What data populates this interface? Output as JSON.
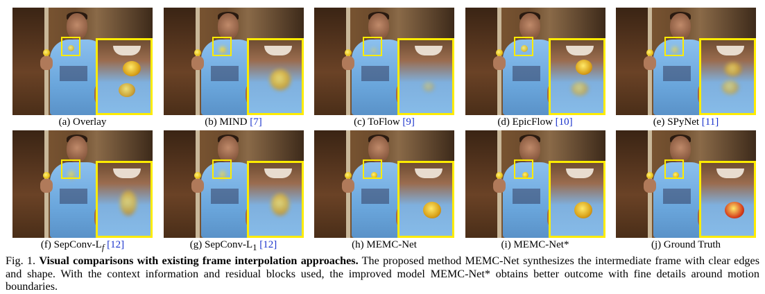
{
  "figure": {
    "rows": [
      [
        {
          "letter": "(a)",
          "label": "Overlay",
          "ref": ""
        },
        {
          "letter": "(b)",
          "label": "MIND",
          "ref": "[7]"
        },
        {
          "letter": "(c)",
          "label": "ToFlow",
          "ref": "[9]"
        },
        {
          "letter": "(d)",
          "label": "EpicFlow",
          "ref": "[10]"
        },
        {
          "letter": "(e)",
          "label": "SPyNet",
          "ref": "[11]"
        }
      ],
      [
        {
          "letter": "(f)",
          "label": "SepConv-L",
          "sub": "f",
          "ref": "[12]"
        },
        {
          "letter": "(g)",
          "label": "SepConv-L",
          "sub": "1",
          "ref": "[12]"
        },
        {
          "letter": "(h)",
          "label": "MEMC-Net",
          "ref": ""
        },
        {
          "letter": "(i)",
          "label": "MEMC-Net*",
          "ref": ""
        },
        {
          "letter": "(j)",
          "label": "Ground Truth",
          "ref": ""
        }
      ]
    ],
    "caption": {
      "prefix": "Fig. 1.",
      "bold": "Visual comparisons with existing frame interpolation approaches.",
      "rest": "The proposed method MEMC-Net synthesizes the intermediate frame with clear edges and shape. With the context information and residual blocks used, the improved model MEMC-Net* obtains better outcome with fine details around motion boundaries."
    }
  },
  "colors": {
    "highlight_box": "#ffec00",
    "reference_link": "#1a33cc"
  }
}
